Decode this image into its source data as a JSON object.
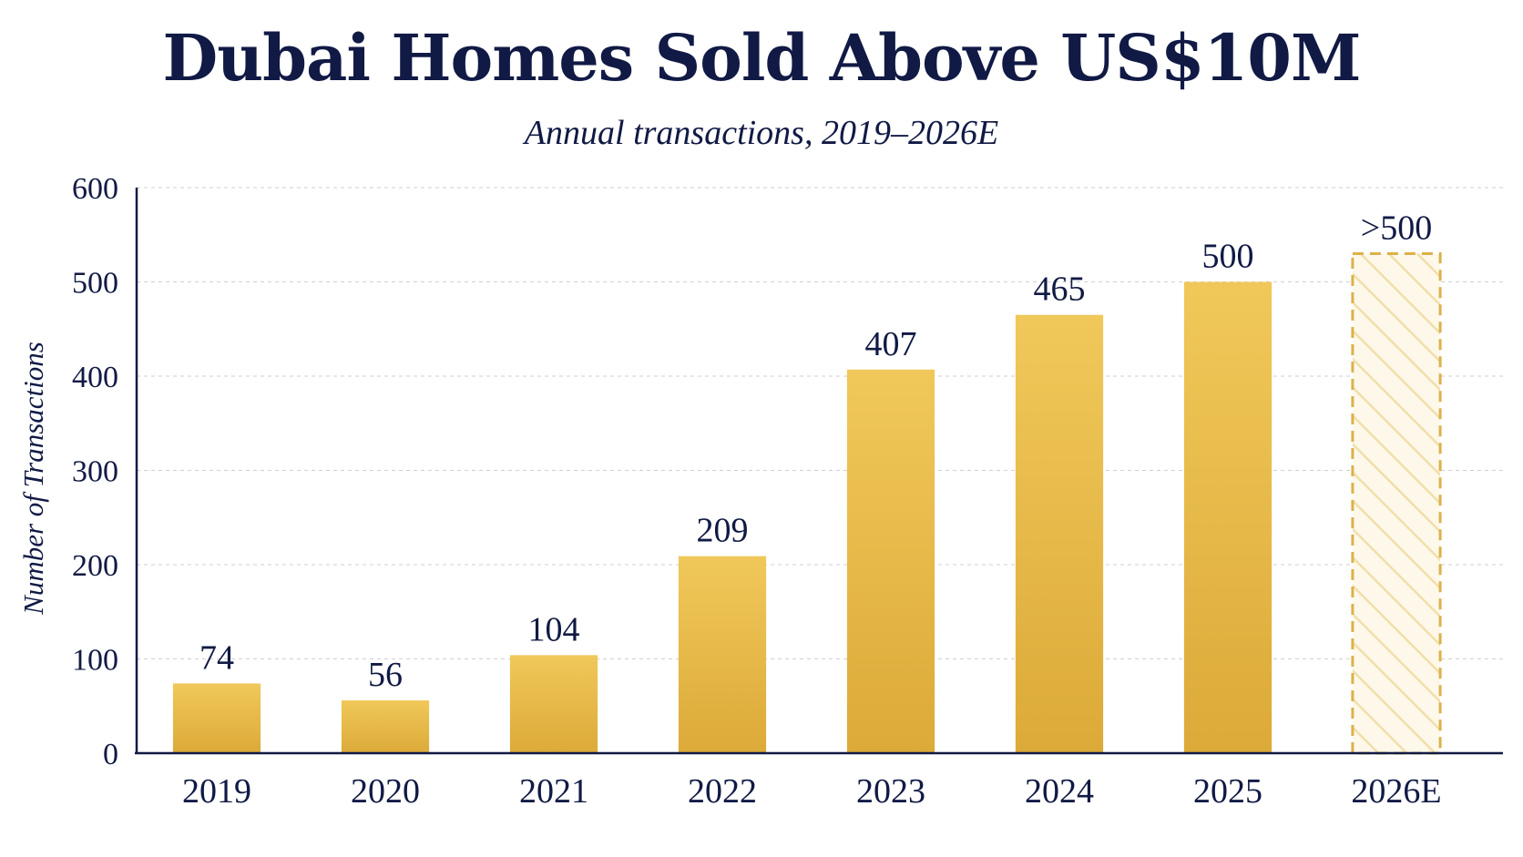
{
  "header": {
    "title": "Dubai Homes Sold Above US$10M",
    "subtitle": "Annual transactions, 2019–2026E"
  },
  "chart_data": {
    "type": "bar",
    "title": "Dubai Homes Sold Above US$10M",
    "subtitle": "Annual transactions, 2019–2026E",
    "ylabel": "Number of Transactions",
    "xlabel": "",
    "ylim": [
      0,
      600
    ],
    "yticks": [
      0,
      100,
      200,
      300,
      400,
      500,
      600
    ],
    "grid": true,
    "categories": [
      "2019",
      "2020",
      "2021",
      "2022",
      "2023",
      "2024",
      "2025",
      "2026E"
    ],
    "values": [
      74,
      56,
      104,
      209,
      407,
      465,
      500,
      530
    ],
    "value_labels": [
      "74",
      "56",
      "104",
      "209",
      "407",
      "465",
      "500",
      ">500"
    ],
    "estimated": [
      false,
      false,
      false,
      false,
      false,
      false,
      false,
      true
    ],
    "colors": {
      "bar": "#e3b33f",
      "bar_light": "#f0c85a",
      "estimate_stroke": "#ddb14a",
      "text": "#111a45",
      "grid": "#cfcfd6"
    }
  }
}
